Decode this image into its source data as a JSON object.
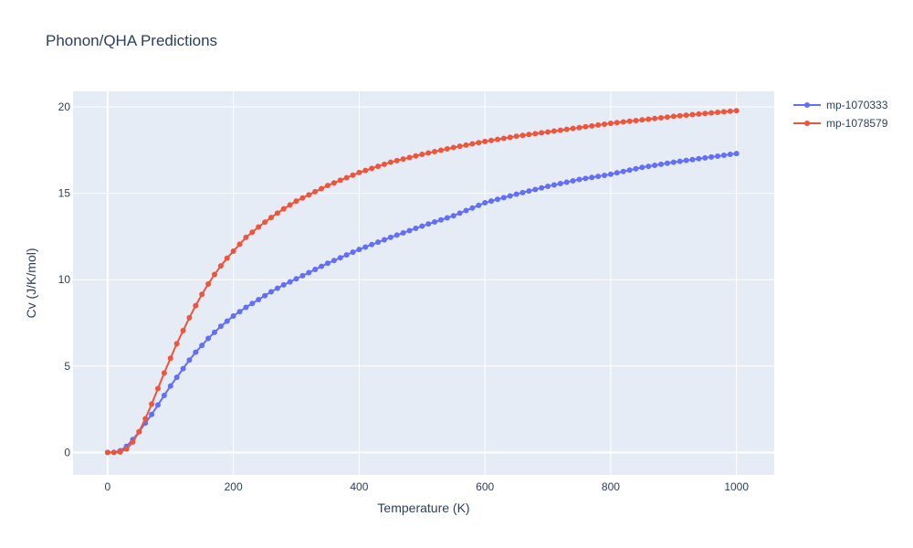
{
  "chart_data": {
    "type": "line",
    "title": "Phonon/QHA Predictions",
    "xlabel": "Temperature (K)",
    "ylabel": "Cv (J/K/mol)",
    "xlim": [
      -55,
      1060
    ],
    "ylim": [
      -1.3,
      20.9
    ],
    "xticks": [
      0,
      200,
      400,
      600,
      800,
      1000
    ],
    "xtick_labels": [
      "0",
      "200",
      "400",
      "600",
      "800",
      "1000"
    ],
    "yticks": [
      0,
      5,
      10,
      15,
      20
    ],
    "ytick_labels": [
      "0",
      "5",
      "10",
      "15",
      "20"
    ],
    "grid": true,
    "legend_position": "top-right",
    "series": [
      {
        "name": "mp-1070333",
        "color": "#636efa",
        "anchors": [
          [
            0,
            0
          ],
          [
            10,
            0.01
          ],
          [
            20,
            0.1
          ],
          [
            30,
            0.35
          ],
          [
            40,
            0.75
          ],
          [
            50,
            1.2
          ],
          [
            60,
            1.7
          ],
          [
            70,
            2.2
          ],
          [
            80,
            2.75
          ],
          [
            90,
            3.3
          ],
          [
            100,
            3.85
          ],
          [
            110,
            4.35
          ],
          [
            120,
            4.85
          ],
          [
            130,
            5.35
          ],
          [
            140,
            5.8
          ],
          [
            150,
            6.2
          ],
          [
            160,
            6.6
          ],
          [
            170,
            6.95
          ],
          [
            180,
            7.3
          ],
          [
            190,
            7.6
          ],
          [
            200,
            7.9
          ],
          [
            220,
            8.4
          ],
          [
            240,
            8.85
          ],
          [
            260,
            9.3
          ],
          [
            280,
            9.7
          ],
          [
            300,
            10.05
          ],
          [
            350,
            10.95
          ],
          [
            400,
            11.75
          ],
          [
            450,
            12.45
          ],
          [
            500,
            13.1
          ],
          [
            550,
            13.7
          ],
          [
            600,
            14.45
          ],
          [
            650,
            14.95
          ],
          [
            700,
            15.4
          ],
          [
            750,
            15.8
          ],
          [
            800,
            16.1
          ],
          [
            850,
            16.5
          ],
          [
            900,
            16.8
          ],
          [
            950,
            17.05
          ],
          [
            1000,
            17.3
          ]
        ]
      },
      {
        "name": "mp-1078579",
        "color": "#ef553b",
        "anchors": [
          [
            0,
            0
          ],
          [
            10,
            0.0
          ],
          [
            20,
            0.03
          ],
          [
            30,
            0.2
          ],
          [
            40,
            0.6
          ],
          [
            50,
            1.2
          ],
          [
            60,
            1.95
          ],
          [
            70,
            2.8
          ],
          [
            80,
            3.7
          ],
          [
            90,
            4.6
          ],
          [
            100,
            5.45
          ],
          [
            110,
            6.3
          ],
          [
            120,
            7.05
          ],
          [
            130,
            7.8
          ],
          [
            140,
            8.5
          ],
          [
            150,
            9.15
          ],
          [
            160,
            9.75
          ],
          [
            170,
            10.3
          ],
          [
            180,
            10.8
          ],
          [
            190,
            11.25
          ],
          [
            200,
            11.65
          ],
          [
            220,
            12.45
          ],
          [
            240,
            13.05
          ],
          [
            260,
            13.6
          ],
          [
            280,
            14.1
          ],
          [
            300,
            14.55
          ],
          [
            350,
            15.45
          ],
          [
            400,
            16.2
          ],
          [
            450,
            16.8
          ],
          [
            500,
            17.25
          ],
          [
            550,
            17.65
          ],
          [
            600,
            18.0
          ],
          [
            650,
            18.3
          ],
          [
            700,
            18.55
          ],
          [
            750,
            18.8
          ],
          [
            800,
            19.05
          ],
          [
            850,
            19.25
          ],
          [
            900,
            19.45
          ],
          [
            950,
            19.62
          ],
          [
            1000,
            19.78
          ]
        ]
      }
    ]
  }
}
